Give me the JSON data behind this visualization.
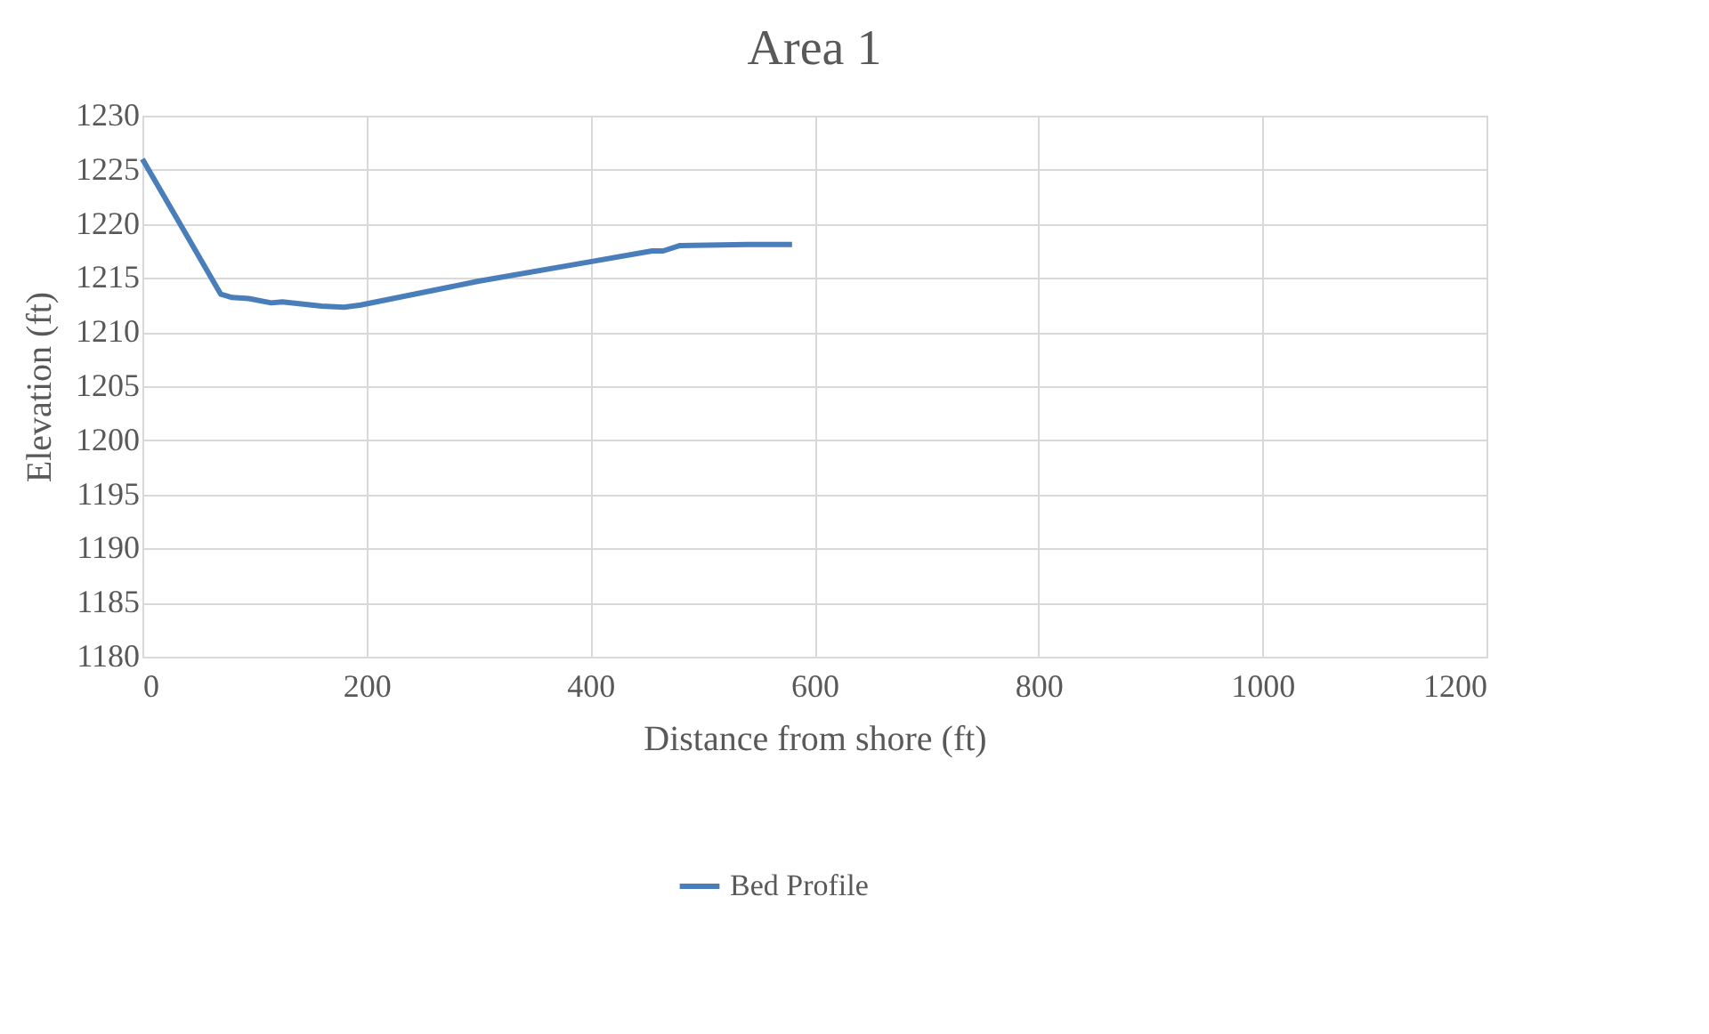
{
  "chart_data": {
    "type": "line",
    "title": "Area 1",
    "xlabel": "Distance from shore (ft)",
    "ylabel": "Elevation (ft)",
    "x": [
      0,
      70,
      80,
      95,
      115,
      125,
      160,
      180,
      195,
      300,
      400,
      455,
      465,
      480,
      540,
      580
    ],
    "series": [
      {
        "name": "Bed Profile",
        "color": "#4a7ebb",
        "values": [
          1226,
          1213.5,
          1213.2,
          1213.1,
          1212.7,
          1212.8,
          1212.4,
          1212.3,
          1212.5,
          1214.7,
          1216.5,
          1217.5,
          1217.5,
          1218,
          1218.1,
          1218.1
        ]
      }
    ],
    "xlim": [
      0,
      1200
    ],
    "xticks": [
      0,
      200,
      400,
      600,
      800,
      1000,
      1200
    ],
    "ylim": [
      1180,
      1230
    ],
    "yticks": [
      1180,
      1185,
      1190,
      1195,
      1200,
      1205,
      1210,
      1215,
      1220,
      1225,
      1230
    ],
    "grid": true,
    "legend": "bottom",
    "marker": "none",
    "line_style": "solid"
  }
}
